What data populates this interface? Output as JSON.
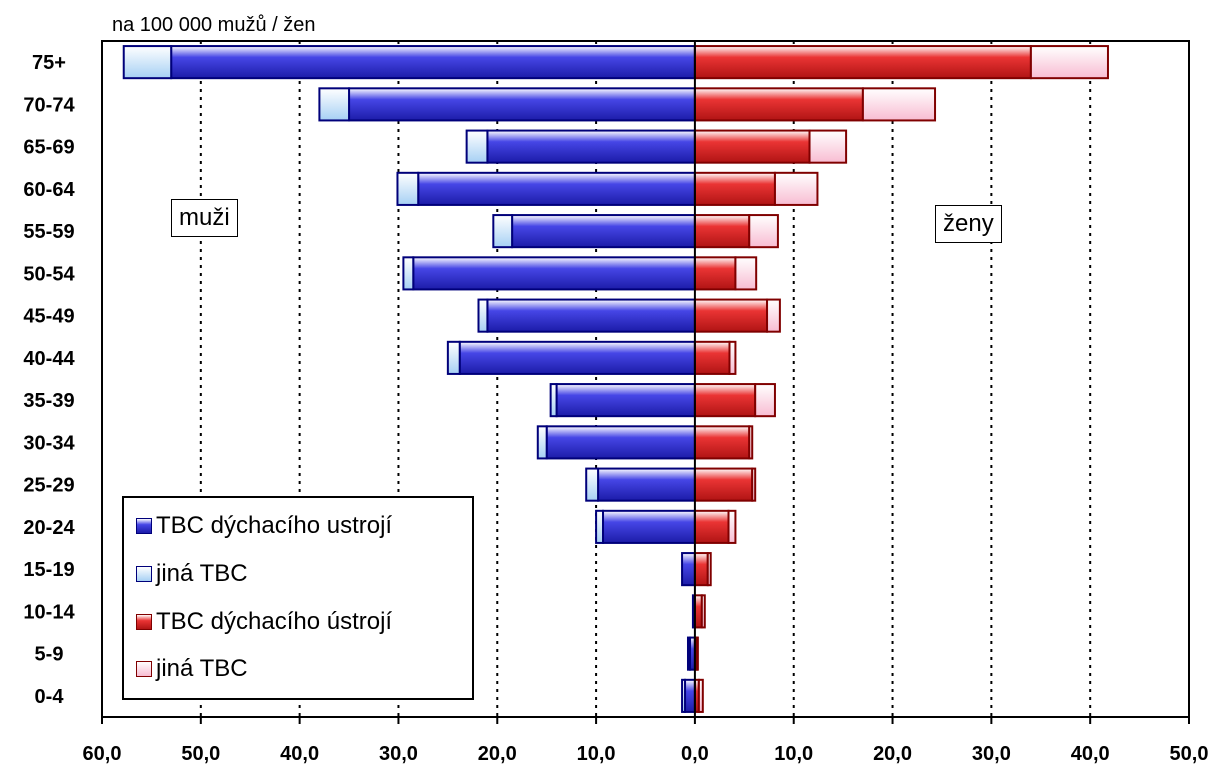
{
  "chart_data": {
    "type": "bar",
    "orientation": "horizontal-population-pyramid",
    "unit_label": "na 100 000 mužů / žen",
    "left_group_label": "muži",
    "right_group_label": "ženy",
    "categories": [
      "75+",
      "70-74",
      "65-69",
      "60-64",
      "55-59",
      "50-54",
      "45-49",
      "40-44",
      "35-39",
      "30-34",
      "25-29",
      "20-24",
      "15-19",
      "10-14",
      "5-9",
      "0-4"
    ],
    "x_ticks": [
      "60,0",
      "50,0",
      "40,0",
      "30,0",
      "20,0",
      "10,0",
      "0,0",
      "10,0",
      "20,0",
      "30,0",
      "40,0",
      "50,0"
    ],
    "xlim": [
      -60,
      50
    ],
    "grid": "vertical dotted lines",
    "legend_position": "bottom-left",
    "series": [
      {
        "name": "TBC dýchacího ustrojí",
        "side": "muži",
        "color": "#3333dd",
        "values": [
          53.0,
          35.0,
          21.0,
          28.0,
          18.5,
          28.5,
          21.0,
          23.8,
          14.0,
          15.0,
          9.8,
          9.3,
          1.3,
          0.2,
          0.5,
          1.0
        ]
      },
      {
        "name": "jiná TBC",
        "side": "muži",
        "color": "#aad4f6",
        "values": [
          4.8,
          3.0,
          2.1,
          2.1,
          1.9,
          1.0,
          0.9,
          1.2,
          0.6,
          0.9,
          1.2,
          0.7,
          0.0,
          0.0,
          0.2,
          0.3
        ]
      },
      {
        "name": "TBC dýchacího ústrojí",
        "side": "ženy",
        "color": "#dd2222",
        "values": [
          34.0,
          17.0,
          11.6,
          8.1,
          5.5,
          4.1,
          7.3,
          3.5,
          6.1,
          5.5,
          5.8,
          3.4,
          1.3,
          0.7,
          0.2,
          0.4
        ]
      },
      {
        "name": "jiná TBC",
        "side": "ženy",
        "color": "#f8c0d4",
        "values": [
          7.8,
          7.3,
          3.7,
          4.3,
          2.9,
          2.1,
          1.3,
          0.6,
          2.0,
          0.3,
          0.3,
          0.7,
          0.3,
          0.3,
          0.1,
          0.4
        ]
      }
    ]
  }
}
